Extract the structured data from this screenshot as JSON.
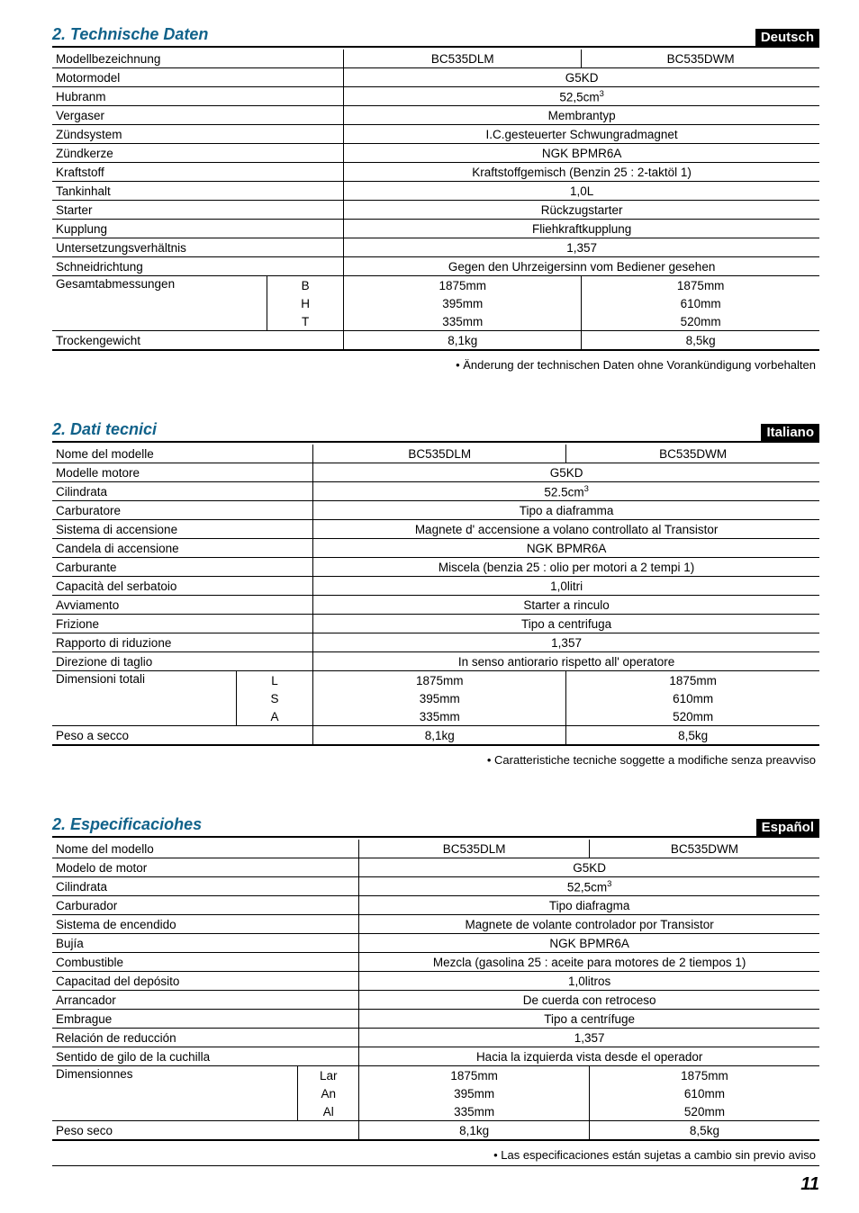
{
  "page_number": "11",
  "sections": [
    {
      "title": "2. Technische Daten",
      "lang": "Deutsch",
      "label_col_w": "28%",
      "sub_col_w": "10%",
      "model_cols": [
        "BC535DLM",
        "BC535DWM"
      ],
      "rows_span": [
        {
          "label": "Modellbezeichnung",
          "v1": "BC535DLM",
          "v2": "BC535DWM",
          "span": false
        },
        {
          "label": "Motormodel",
          "val": "G5KD",
          "span": true
        },
        {
          "label": "Hubranm",
          "val": "52,5cm³",
          "span": true,
          "sup": true
        },
        {
          "label": "Vergaser",
          "val": "Membrantyp",
          "span": true
        },
        {
          "label": "Zündsystem",
          "val": "I.C.gesteuerter Schwungradmagnet",
          "span": true
        },
        {
          "label": "Zündkerze",
          "val": "NGK BPMR6A",
          "span": true
        },
        {
          "label": "Kraftstoff",
          "val": "Kraftstoffgemisch (Benzin 25 : 2-taktöl 1)",
          "span": true
        },
        {
          "label": "Tankinhalt",
          "val": "1,0L",
          "span": true
        },
        {
          "label": "Starter",
          "val": "Rückzugstarter",
          "span": true
        },
        {
          "label": "Kupplung",
          "val": "Fliehkraftkupplung",
          "span": true
        },
        {
          "label": "Untersetzungsverhältnis",
          "val": "1,357",
          "span": true
        },
        {
          "label": "Schneidrichtung",
          "val": "Gegen den Uhrzeigersinn vom Bediener gesehen",
          "span": true
        }
      ],
      "dim_label": "Gesamtabmessungen",
      "dim_subs": [
        "B",
        "H",
        "T"
      ],
      "dim_v1": [
        "1875mm",
        "395mm",
        "335mm"
      ],
      "dim_v2": [
        "1875mm",
        "610mm",
        "520mm"
      ],
      "weight_label": "Trockengewicht",
      "weight_v1": "8,1kg",
      "weight_v2": "8,5kg",
      "note": "• Änderung der technischen Daten ohne Vorankündigung vorbehalten"
    },
    {
      "title": "2. Dati tecnici",
      "lang": "Italiano",
      "label_col_w": "24%",
      "sub_col_w": "10%",
      "rows_span": [
        {
          "label": "Nome del modelle",
          "v1": "BC535DLM",
          "v2": "BC535DWM",
          "span": false
        },
        {
          "label": "Modelle  motore",
          "val": "G5KD",
          "span": true
        },
        {
          "label": "Cilindrata",
          "val": "52.5cm³",
          "span": true,
          "sup": true
        },
        {
          "label": "Carburatore",
          "val": "Tipo a diaframma",
          "span": true
        },
        {
          "label": "Sistema di accensione",
          "val": "Magnete d' accensione a volano controllato al Transistor",
          "span": true
        },
        {
          "label": "Candela di accensione",
          "val": "NGK BPMR6A",
          "span": true
        },
        {
          "label": "Carburante",
          "val": "Miscela (benzia 25 : olio per motori a 2 tempi 1)",
          "span": true
        },
        {
          "label": "Capacità del serbatoio",
          "val": "1,0litri",
          "span": true
        },
        {
          "label": "Avviamento",
          "val": "Starter a rinculo",
          "span": true
        },
        {
          "label": "Frizione",
          "val": "Tipo a  centrifuga",
          "span": true
        },
        {
          "label": "Rapporto di riduzione",
          "val": "1,357",
          "span": true
        },
        {
          "label": "Direzione di taglio",
          "val": "In senso antiorario rispetto all' operatore",
          "span": true
        }
      ],
      "dim_label": "Dimensioni totali",
      "dim_subs": [
        "L",
        "S",
        "A"
      ],
      "dim_v1": [
        "1875mm",
        "395mm",
        "335mm"
      ],
      "dim_v2": [
        "1875mm",
        "610mm",
        "520mm"
      ],
      "weight_label": "Peso a secco",
      "weight_v1": "8,1kg",
      "weight_v2": "8,5kg",
      "note": "• Caratteristiche tecniche soggette a modifiche senza preavviso"
    },
    {
      "title": "2. Especificaciohes",
      "lang": "Español",
      "label_col_w": "32%",
      "sub_col_w": "8%",
      "rows_span": [
        {
          "label": "Nome del modello",
          "v1": "BC535DLM",
          "v2": "BC535DWM",
          "span": false
        },
        {
          "label": "Modelo  de motor",
          "val": "G5KD",
          "span": true
        },
        {
          "label": "Cilindrata",
          "val": "52,5cm³",
          "span": true,
          "sup": true
        },
        {
          "label": "Carburador",
          "val": "Tipo  diafragma",
          "span": true
        },
        {
          "label": "Sistema de encendido",
          "val": "Magnete de  volante controlador por Transistor",
          "span": true
        },
        {
          "label": "Bujía",
          "val": "NGK BPMR6A",
          "span": true
        },
        {
          "label": "Combustible",
          "val": "Mezcla (gasolina 25 : aceite para motores de 2 tiempos 1)",
          "span": true
        },
        {
          "label": "Capacitad del depósito",
          "val": "1,0litros",
          "span": true
        },
        {
          "label": "Arrancador",
          "val": "De cuerda con retroceso",
          "span": true
        },
        {
          "label": "Embrague",
          "val": "Tipo a  centrífuge",
          "span": true
        },
        {
          "label": "Relación de reducción",
          "val": "1,357",
          "span": true
        },
        {
          "label": "Sentido de gilo de la cuchilla",
          "val": "Hacia la izquierda vista desde el operador",
          "span": true
        }
      ],
      "dim_label": "Dimensionnes",
      "dim_subs": [
        "Lar",
        "An",
        "Al"
      ],
      "dim_v1": [
        "1875mm",
        "395mm",
        "335mm"
      ],
      "dim_v2": [
        "1875mm",
        "610mm",
        "520mm"
      ],
      "weight_label": "Peso seco",
      "weight_v1": "8,1kg",
      "weight_v2": "8,5kg",
      "note": "• Las especificaciones están sujetas a cambio sin previo aviso"
    }
  ]
}
